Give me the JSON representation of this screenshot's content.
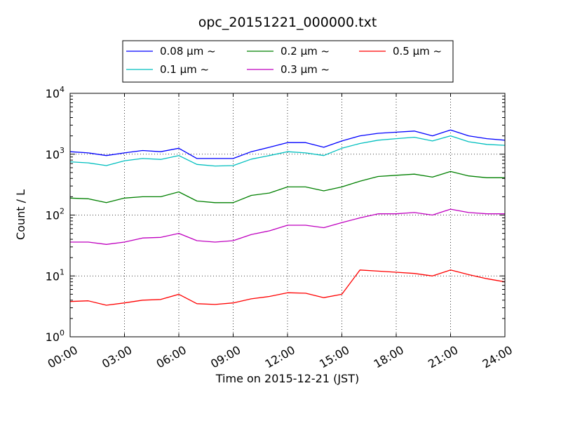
{
  "chart_data": {
    "type": "line",
    "title": "opc_20151221_000000.txt",
    "xlabel": "Time on 2015-12-21 (JST)",
    "ylabel": "Count / L",
    "x_unit": "hour",
    "xlim": [
      0,
      24
    ],
    "ylim": [
      1,
      10000
    ],
    "yscale": "log",
    "grid": true,
    "legend_position": "top-center",
    "x_ticks": [
      "00:00",
      "03:00",
      "06:00",
      "09:00",
      "12:00",
      "15:00",
      "18:00",
      "21:00",
      "24:00"
    ],
    "y_ticks": [
      {
        "base": "10",
        "exp": "0"
      },
      {
        "base": "10",
        "exp": "1"
      },
      {
        "base": "10",
        "exp": "2"
      },
      {
        "base": "10",
        "exp": "3"
      },
      {
        "base": "10",
        "exp": "4"
      }
    ],
    "x": [
      0,
      1,
      2,
      3,
      4,
      5,
      6,
      7,
      8,
      9,
      10,
      11,
      12,
      13,
      14,
      15,
      16,
      17,
      18,
      19,
      20,
      21,
      22,
      23,
      24
    ],
    "series": [
      {
        "name": "0.08 μm ~",
        "color": "#0000ff",
        "values": [
          1100,
          1050,
          950,
          1050,
          1150,
          1100,
          1250,
          850,
          850,
          850,
          1100,
          1300,
          1550,
          1550,
          1300,
          1650,
          2000,
          2200,
          2300,
          2400,
          2000,
          2500,
          2000,
          1800,
          1700
        ]
      },
      {
        "name": "0.1 μm ~",
        "color": "#00bfbf",
        "values": [
          750,
          720,
          650,
          780,
          850,
          820,
          950,
          680,
          640,
          650,
          830,
          950,
          1100,
          1050,
          950,
          1250,
          1500,
          1700,
          1800,
          1900,
          1650,
          2000,
          1600,
          1450,
          1400
        ]
      },
      {
        "name": "0.2 μm ~",
        "color": "#008000",
        "values": [
          190,
          185,
          160,
          190,
          200,
          200,
          240,
          170,
          160,
          160,
          210,
          230,
          290,
          290,
          250,
          290,
          360,
          430,
          450,
          470,
          420,
          520,
          440,
          410,
          410
        ]
      },
      {
        "name": "0.3 μm ~",
        "color": "#bf00bf",
        "values": [
          36,
          36,
          33,
          36,
          42,
          43,
          50,
          38,
          36,
          38,
          48,
          55,
          68,
          68,
          62,
          75,
          90,
          105,
          105,
          110,
          100,
          125,
          110,
          105,
          105
        ]
      },
      {
        "name": "0.5 μm ~",
        "color": "#ff0000",
        "values": [
          3.8,
          3.9,
          3.3,
          3.6,
          4.0,
          4.1,
          5.0,
          3.5,
          3.4,
          3.6,
          4.2,
          4.6,
          5.3,
          5.2,
          4.4,
          5.0,
          12.5,
          12.0,
          11.5,
          11.0,
          10.0,
          12.5,
          10.5,
          9.0,
          8.0
        ]
      }
    ]
  }
}
